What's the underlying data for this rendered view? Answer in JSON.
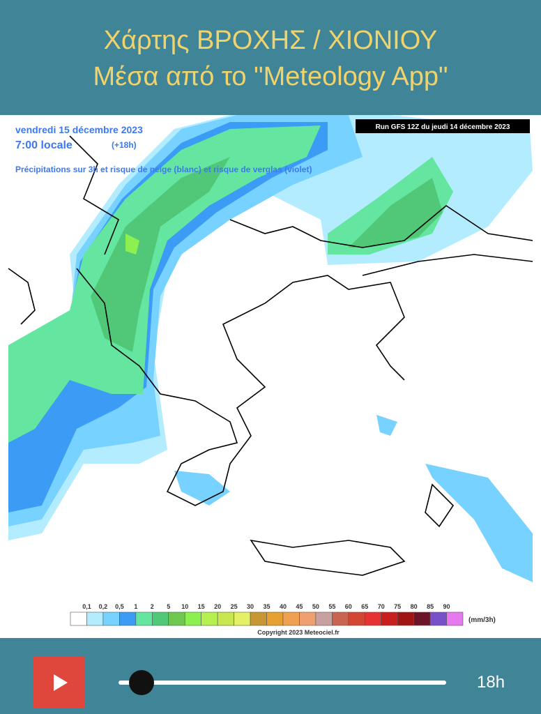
{
  "header": {
    "title_line1": "Χάρτης ΒΡΟΧΗΣ / ΧΙΟΝΙΟΥ",
    "title_line2": "Μέσα από το \"Meteology App\""
  },
  "map": {
    "date": "vendredi 15 décembre 2023",
    "time": "7:00 locale",
    "lead": "(+18h)",
    "description": "Précipitations sur 3h et risque de neige (blanc) et risque de verglas (violet)",
    "run": "Run GFS 12Z du jeudi 14 décembre 2023",
    "legend": {
      "labels": [
        "0,1",
        "0,2",
        "0,5",
        "1",
        "2",
        "5",
        "10",
        "15",
        "20",
        "25",
        "30",
        "35",
        "40",
        "45",
        "50",
        "55",
        "60",
        "65",
        "70",
        "75",
        "80",
        "85",
        "90"
      ],
      "colors": [
        "#ffffff",
        "#b4ecff",
        "#78d2ff",
        "#3c9cf5",
        "#64e6a0",
        "#50c878",
        "#6ec850",
        "#8cf050",
        "#b4f050",
        "#c8e650",
        "#e6f064",
        "#c89632",
        "#e6a032",
        "#f0a050",
        "#f0a070",
        "#c8a0a0",
        "#c86450",
        "#d24632",
        "#e63232",
        "#c81e1e",
        "#a01414",
        "#6e1428",
        "#7850c8",
        "#e678f0"
      ],
      "unit": "(mm/3h)"
    },
    "copyright": "Copyright 2023 Meteociel.fr"
  },
  "player": {
    "time": "18h"
  }
}
